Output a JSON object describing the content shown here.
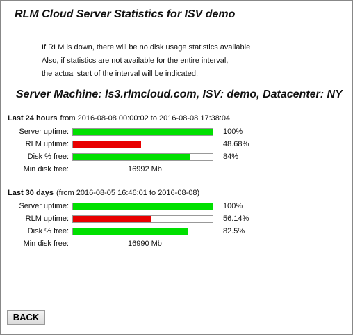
{
  "title": "RLM Cloud Server Statistics for ISV demo",
  "notes": [
    "If RLM is down, there will be no disk usage statistics available",
    "Also, if statistics are not available for the entire interval,",
    "the actual start of the interval will be indicated."
  ],
  "server_heading": "Server Machine: ls3.rlmcloud.com, ISV: demo, Datacenter: NY",
  "bar_range": [
    0,
    100
  ],
  "periods": [
    {
      "heading": "Last 24 hours",
      "range": "from 2016-08-08 00:00:02 to 2016-08-08 17:38:04",
      "rows": [
        {
          "label": "Server uptime:",
          "value": 100,
          "value_label": "100%",
          "color": "#00e000"
        },
        {
          "label": "RLM uptime:",
          "value": 48.68,
          "value_label": "48.68%",
          "color": "#e80000"
        },
        {
          "label": "Disk % free:",
          "value": 84,
          "value_label": "84%",
          "color": "#00e000"
        }
      ],
      "min_disk_label": "Min disk free:",
      "min_disk": "16992 Mb"
    },
    {
      "heading": "Last 30 days",
      "range": "(from 2016-08-05 16:46:01 to 2016-08-08)",
      "rows": [
        {
          "label": "Server uptime:",
          "value": 100,
          "value_label": "100%",
          "color": "#00e000"
        },
        {
          "label": "RLM uptime:",
          "value": 56.14,
          "value_label": "56.14%",
          "color": "#e80000"
        },
        {
          "label": "Disk % free:",
          "value": 82.5,
          "value_label": "82.5%",
          "color": "#00e000"
        }
      ],
      "min_disk_label": "Min disk free:",
      "min_disk": "16990 Mb"
    }
  ],
  "button": "BACK"
}
